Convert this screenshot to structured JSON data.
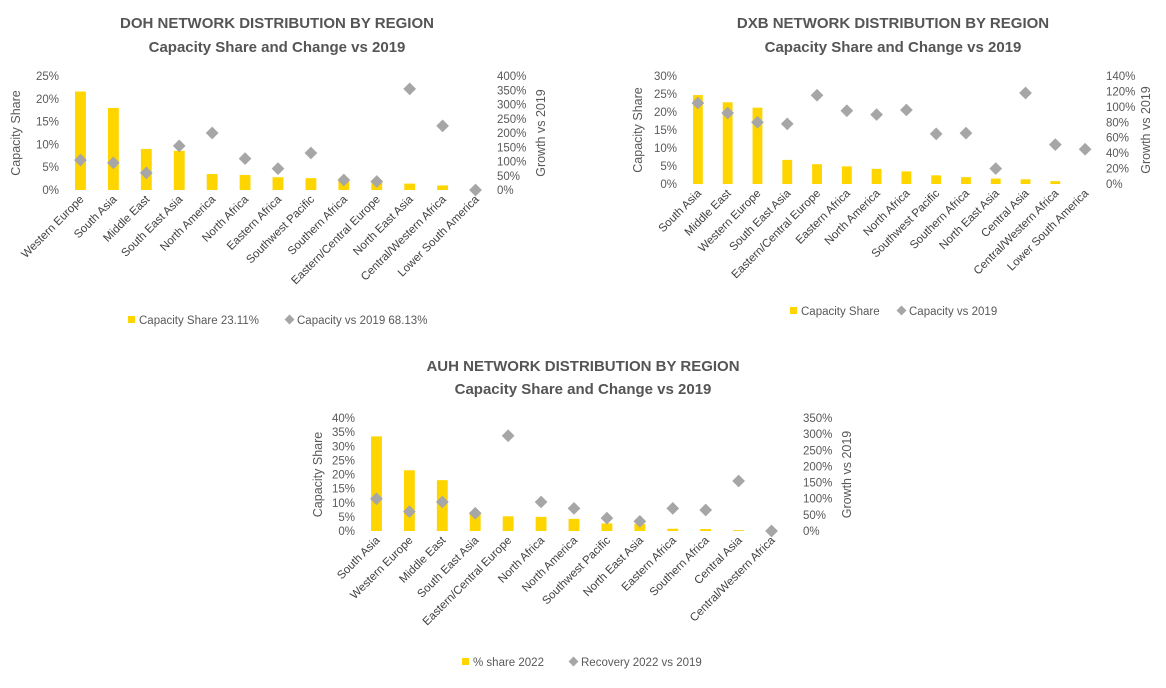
{
  "colors": {
    "bar": "#FFD500",
    "marker": "#A6A6A6",
    "text": "#595959"
  },
  "chart_data": [
    {
      "type": "bar",
      "title": "DOH NETWORK DISTRIBUTION BY REGION",
      "subtitle": "Capacity Share and Change vs 2019",
      "ylabel": "Capacity Share",
      "y2label": "Growth vs 2019",
      "ylim": [
        0,
        25
      ],
      "yticks": [
        0,
        5,
        10,
        15,
        20,
        25
      ],
      "y2lim": [
        0,
        400
      ],
      "y2ticks": [
        0,
        50,
        100,
        150,
        200,
        250,
        300,
        350,
        400
      ],
      "categories": [
        "Western Europe",
        "South Asia",
        "Middle East",
        "South East Asia",
        "North America",
        "North Africa",
        "Eastern Africa",
        "Southwest Pacific",
        "Southern Africa",
        "Eastern/Central Europe",
        "North East Asia",
        "Central/Western Africa",
        "Lower South America"
      ],
      "series": [
        {
          "name": "Capacity Share 23.11%",
          "kind": "bar",
          "axis": "left",
          "values": [
            21.6,
            18.0,
            9.0,
            8.6,
            3.5,
            3.3,
            2.8,
            2.6,
            2.3,
            2.0,
            1.4,
            1.0,
            0
          ]
        },
        {
          "name": "Capacity vs 2019 68.13%",
          "kind": "marker",
          "axis": "right",
          "values": [
            105,
            95,
            60,
            155,
            200,
            110,
            75,
            130,
            35,
            30,
            355,
            225,
            0
          ]
        }
      ],
      "legend": "bottom"
    },
    {
      "type": "bar",
      "title": "DXB NETWORK DISTRIBUTION  BY REGION",
      "subtitle": "Capacity Share and Change vs 2019",
      "ylabel": "Capacity Share",
      "y2label": "Growth vs 2019",
      "ylim": [
        0,
        30
      ],
      "yticks": [
        0,
        5,
        10,
        15,
        20,
        25,
        30
      ],
      "y2lim": [
        0,
        140
      ],
      "y2ticks": [
        0,
        20,
        40,
        60,
        80,
        100,
        120,
        140
      ],
      "categories": [
        "South Asia",
        "Middle East",
        "Western Europe",
        "South East Asia",
        "Eastern/Central Europe",
        "Eastern Africa",
        "North America",
        "North Africa",
        "Southwest Pacific",
        "Southern Africa",
        "North East Asia",
        "Central Asia",
        "Central/Western Africa",
        "Lower South America"
      ],
      "series": [
        {
          "name": "Capacity Share",
          "kind": "bar",
          "axis": "left",
          "values": [
            24.7,
            22.7,
            21.2,
            6.7,
            5.5,
            4.9,
            4.2,
            3.5,
            2.4,
            1.9,
            1.5,
            1.3,
            0.8,
            0
          ]
        },
        {
          "name": "Capacity vs 2019",
          "kind": "marker",
          "axis": "right",
          "values": [
            105,
            92,
            80,
            78,
            115,
            95,
            90,
            96,
            65,
            66,
            20,
            118,
            51,
            45
          ]
        }
      ],
      "legend": "bottom"
    },
    {
      "type": "bar",
      "title": "AUH NETWORK DISTRIBUTION BY REGION",
      "subtitle": "Capacity Share and Change vs 2019",
      "ylabel": "Capacity Share",
      "y2label": "Growth vs 2019",
      "ylim": [
        0,
        40
      ],
      "yticks": [
        0,
        5,
        10,
        15,
        20,
        25,
        30,
        35,
        40
      ],
      "y2lim": [
        0,
        350
      ],
      "y2ticks": [
        0,
        50,
        100,
        150,
        200,
        250,
        300,
        350
      ],
      "categories": [
        "South Asia",
        "Western Europe",
        "Middle East",
        "South East Asia",
        "Eastern/Central Europe",
        "North Africa",
        "North America",
        "Southwest Pacific",
        "North East Asia",
        "Eastern Africa",
        "Southern Africa",
        "Central Asia",
        "Central/Western Africa"
      ],
      "series": [
        {
          "name": "% share 2022",
          "kind": "bar",
          "axis": "left",
          "values": [
            33.5,
            21.5,
            18.0,
            6.0,
            5.2,
            5.0,
            4.3,
            2.7,
            2.5,
            0.8,
            0.7,
            0.3,
            0
          ]
        },
        {
          "name": "Recovery 2022 vs 2019",
          "kind": "marker",
          "axis": "right",
          "values": [
            100,
            60,
            90,
            55,
            295,
            90,
            70,
            40,
            30,
            70,
            65,
            155,
            0
          ]
        }
      ],
      "legend": "bottom"
    }
  ]
}
